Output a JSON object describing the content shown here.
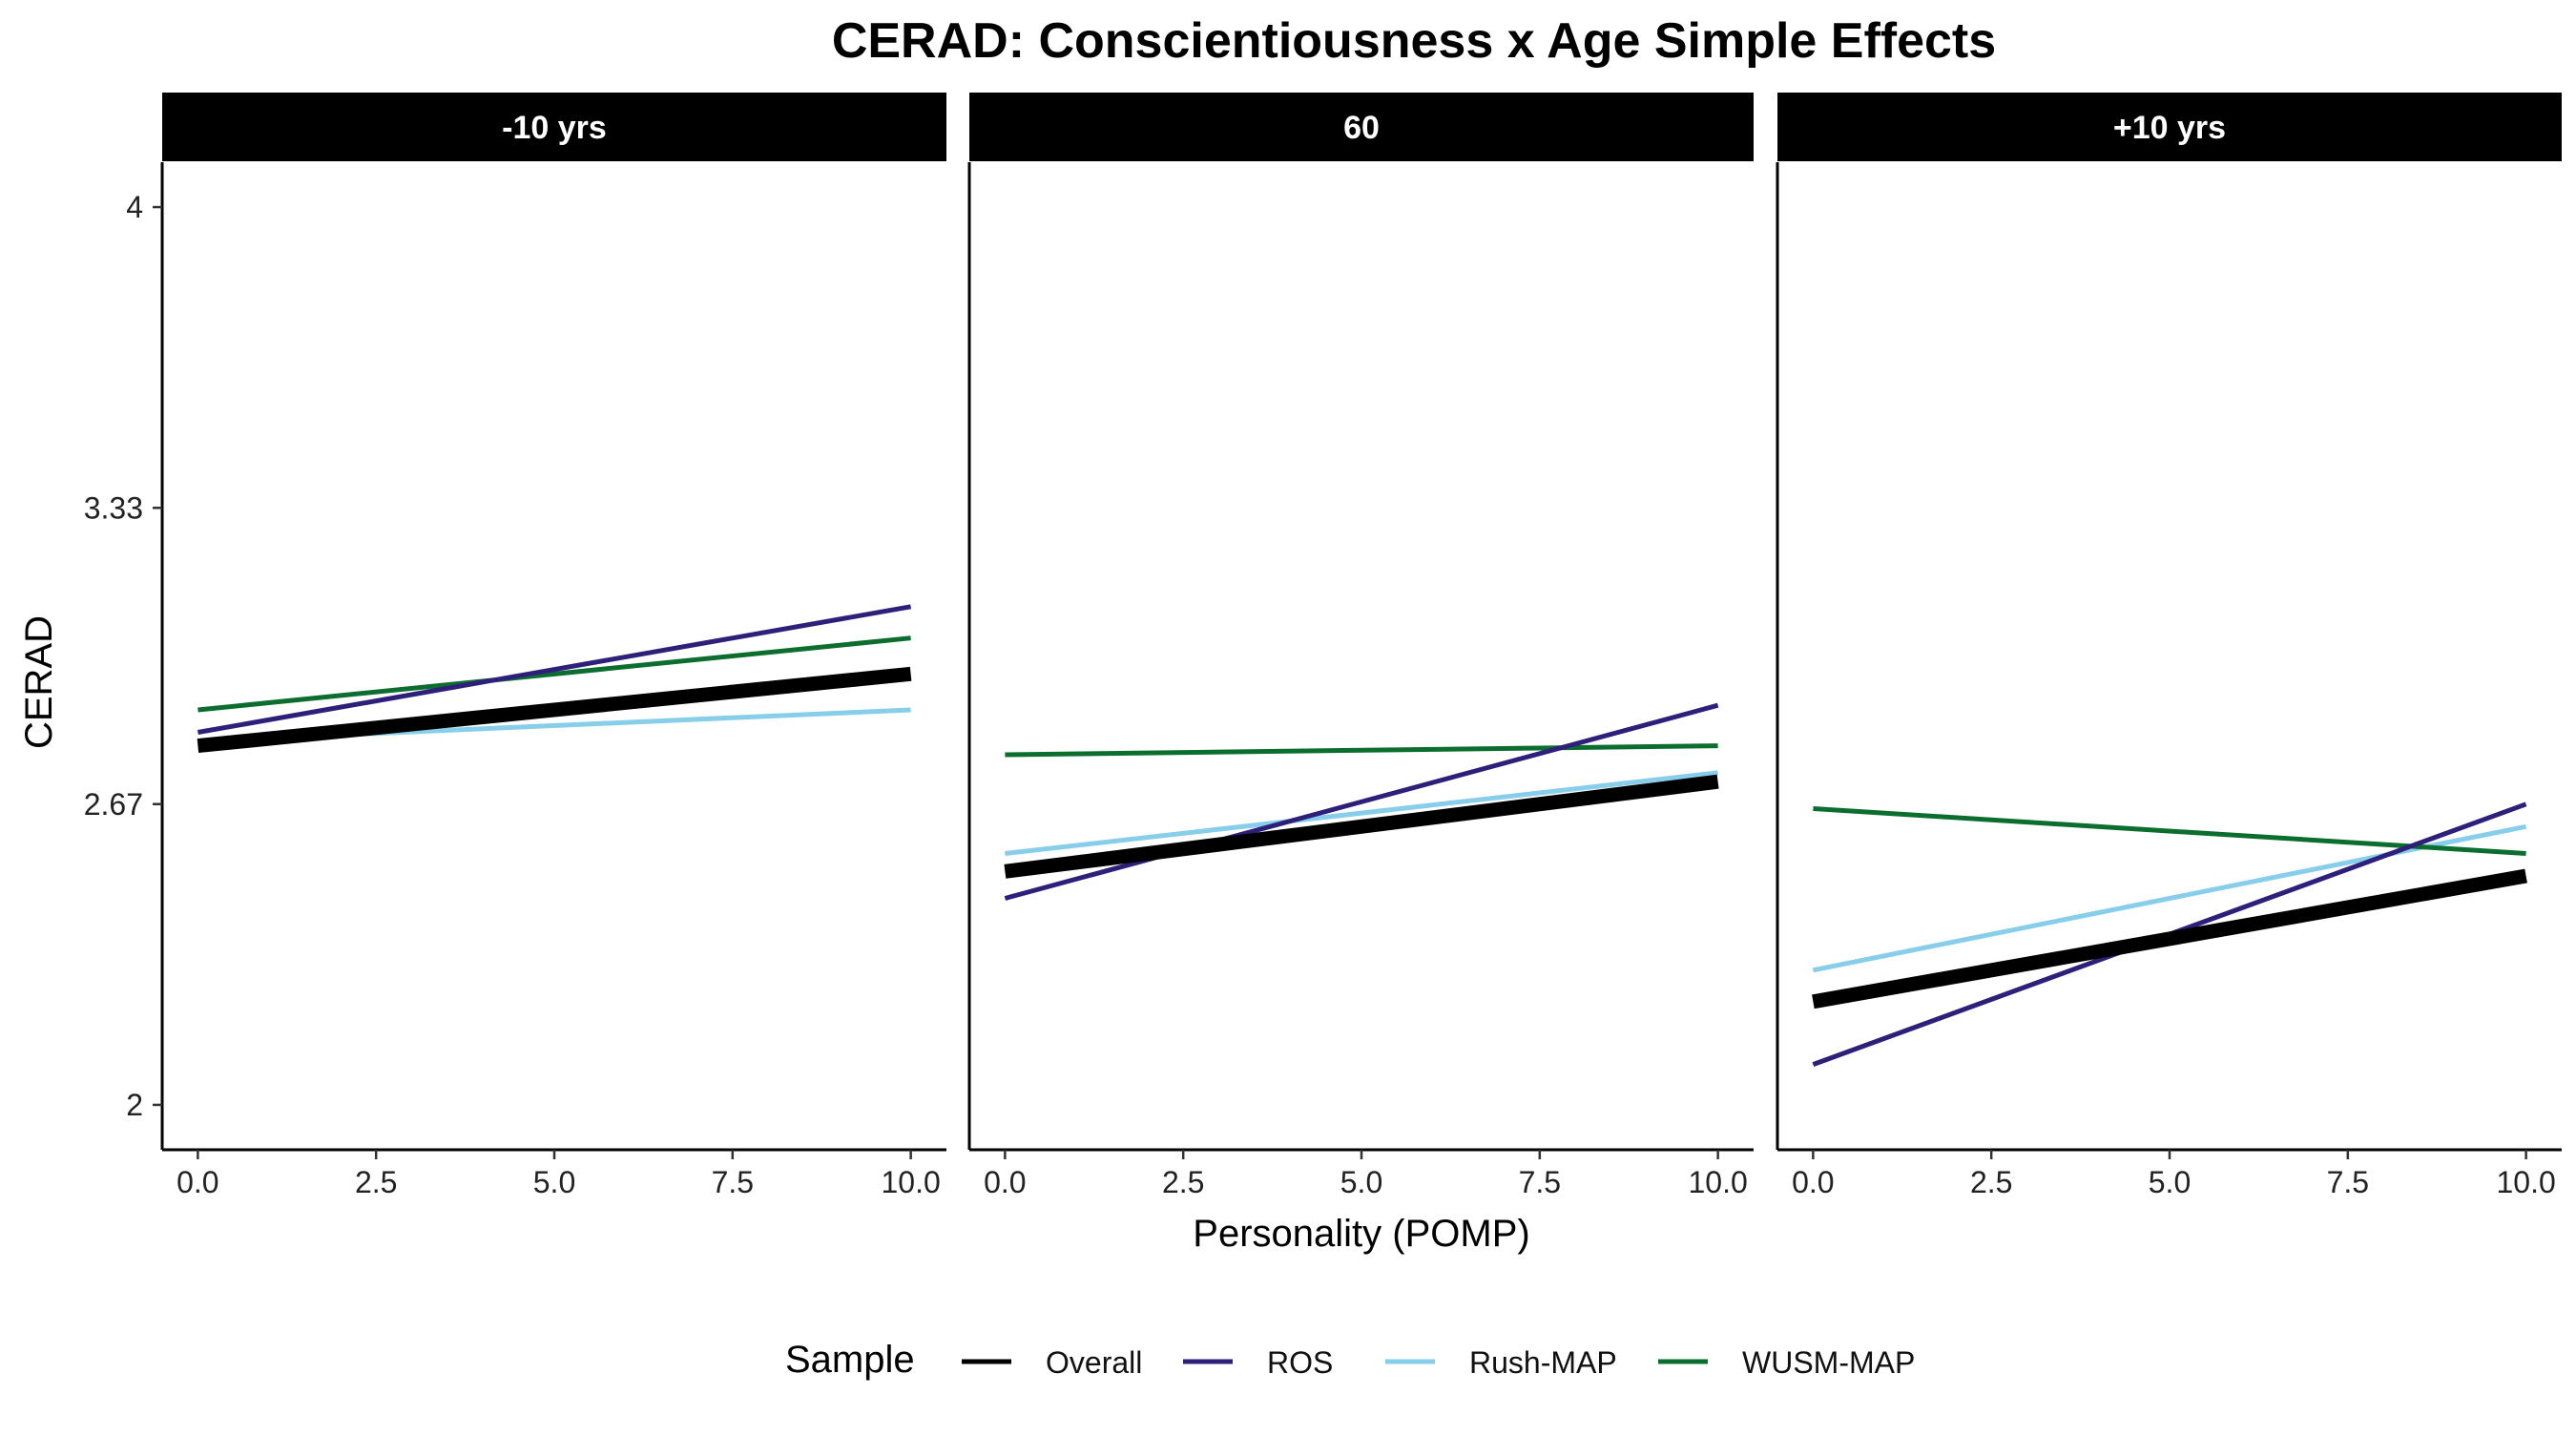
{
  "chart_data": {
    "type": "line",
    "title": "CERAD: Conscientiousness x Age Simple Effects",
    "xlabel": "Personality (POMP)",
    "ylabel": "CERAD",
    "xlim": [
      -0.5,
      10.5
    ],
    "ylim": [
      1.9,
      4.1
    ],
    "x_ticks": [
      0,
      2.5,
      5,
      7.5,
      10
    ],
    "x_tick_labels": [
      "0.0",
      "2.5",
      "5.0",
      "7.5",
      "10.0"
    ],
    "y_ticks": [
      2,
      2.67,
      3.33,
      4
    ],
    "y_tick_labels": [
      "2",
      "2.67",
      "3.33",
      "4"
    ],
    "grid": false,
    "legend": {
      "title": "Sample",
      "position": "bottom",
      "entries": [
        "Overall",
        "ROS",
        "Rush-MAP",
        "WUSM-MAP"
      ]
    },
    "colors": {
      "Overall": "#000000",
      "ROS": "#2E1F7A",
      "Rush-MAP": "#87CEEB",
      "WUSM-MAP": "#0B6E2F"
    },
    "panels": [
      {
        "label": "-10 yrs",
        "series": [
          {
            "name": "Overall",
            "x": [
              0,
              10
            ],
            "y": [
              2.8,
              2.96
            ]
          },
          {
            "name": "ROS",
            "x": [
              0,
              10
            ],
            "y": [
              2.83,
              3.11
            ]
          },
          {
            "name": "Rush-MAP",
            "x": [
              0,
              10
            ],
            "y": [
              2.81,
              2.88
            ]
          },
          {
            "name": "WUSM-MAP",
            "x": [
              0,
              10
            ],
            "y": [
              2.88,
              3.04
            ]
          }
        ]
      },
      {
        "label": "60",
        "series": [
          {
            "name": "Overall",
            "x": [
              0,
              10
            ],
            "y": [
              2.52,
              2.72
            ]
          },
          {
            "name": "ROS",
            "x": [
              0,
              10
            ],
            "y": [
              2.46,
              2.89
            ]
          },
          {
            "name": "Rush-MAP",
            "x": [
              0,
              10
            ],
            "y": [
              2.56,
              2.74
            ]
          },
          {
            "name": "WUSM-MAP",
            "x": [
              0,
              10
            ],
            "y": [
              2.78,
              2.8
            ]
          }
        ]
      },
      {
        "label": "+10 yrs",
        "series": [
          {
            "name": "Overall",
            "x": [
              0,
              10
            ],
            "y": [
              2.23,
              2.51
            ]
          },
          {
            "name": "ROS",
            "x": [
              0,
              10
            ],
            "y": [
              2.09,
              2.67
            ]
          },
          {
            "name": "Rush-MAP",
            "x": [
              0,
              10
            ],
            "y": [
              2.3,
              2.62
            ]
          },
          {
            "name": "WUSM-MAP",
            "x": [
              0,
              10
            ],
            "y": [
              2.66,
              2.56
            ]
          }
        ]
      }
    ]
  }
}
